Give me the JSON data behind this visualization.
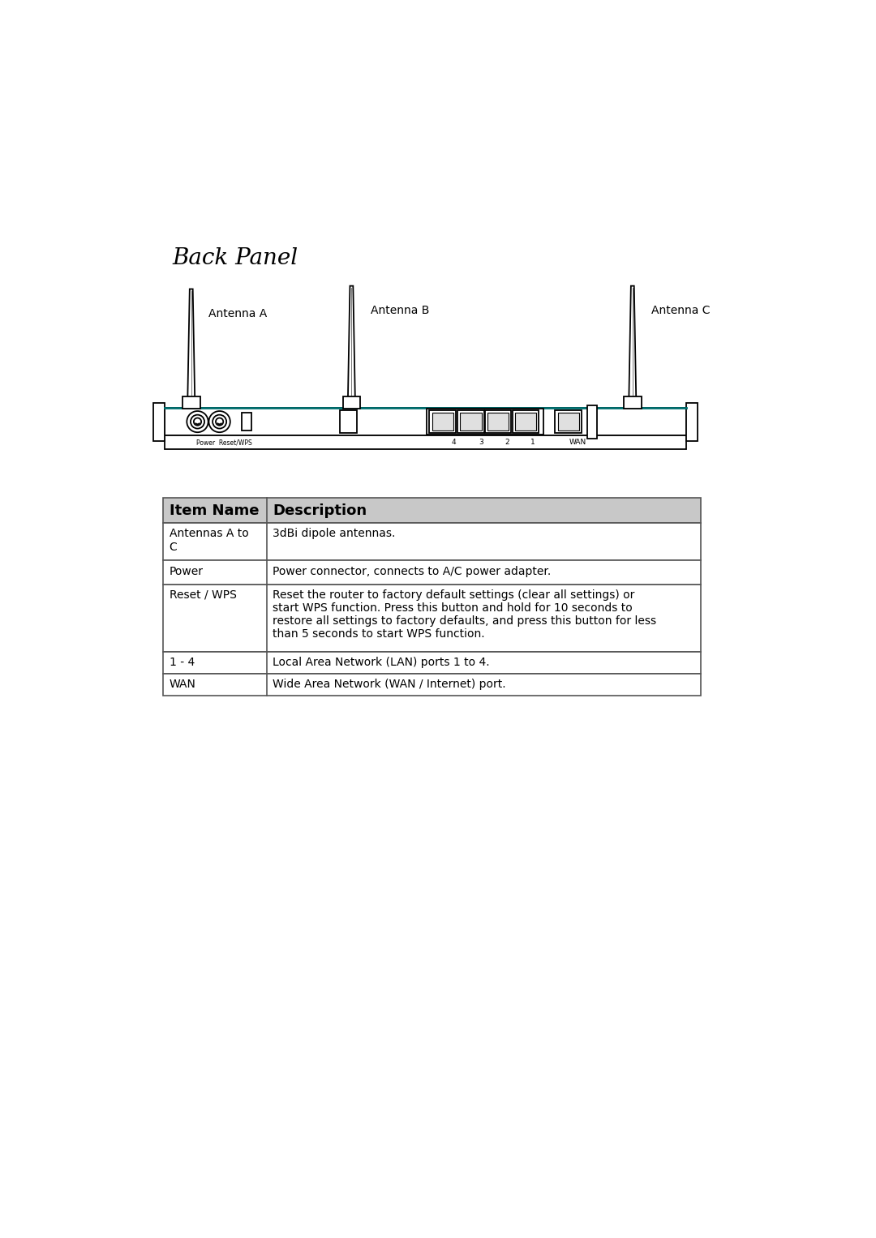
{
  "title": "Back Panel",
  "bg_color": "#ffffff",
  "text_color": "#000000",
  "line_color": "#000000",
  "teal_color": "#007070",
  "antenna_labels": [
    "Antenna A",
    "Antenna B",
    "Antenna C"
  ],
  "port_labels": [
    "4",
    "3",
    "2",
    "1",
    "WAN"
  ],
  "table_header": [
    "Item Name",
    "Description"
  ],
  "table_rows": [
    [
      "Antennas A to\nC",
      "3dBi dipole antennas."
    ],
    [
      "Power",
      "Power connector, connects to A/C power adapter."
    ],
    [
      "Reset / WPS",
      "Reset the router to factory default settings (clear all settings) or\nstart WPS function. Press this button and hold for 10 seconds to\nrestore all settings to factory defaults, and press this button for less\nthan 5 seconds to start WPS function."
    ],
    [
      "1 - 4",
      "Local Area Network (LAN) ports 1 to 4."
    ],
    [
      "WAN",
      "Wide Area Network (WAN / Internet) port."
    ]
  ],
  "header_bg": "#c8c8c8",
  "row_bg": "#ffffff",
  "border_color": "#555555",
  "title_fontsize": 20,
  "label_fontsize": 9,
  "table_fontsize": 10,
  "header_fontsize": 13
}
